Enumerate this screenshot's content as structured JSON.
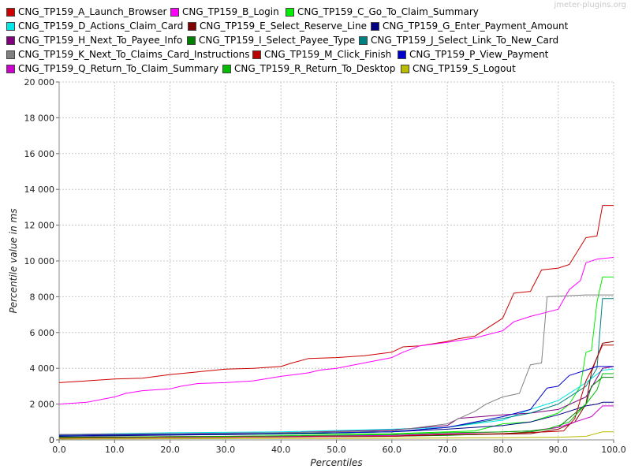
{
  "watermark": "jmeter-plugins.org",
  "chart_data": {
    "type": "line",
    "title": "",
    "xlabel": "Percentiles",
    "ylabel": "Percentile value in ms",
    "xlim": [
      0,
      100
    ],
    "ylim": [
      0,
      20000
    ],
    "x_ticks": [
      "0.0",
      "10.0",
      "20.0",
      "30.0",
      "40.0",
      "50.0",
      "60.0",
      "70.0",
      "80.0",
      "90.0",
      "100.0"
    ],
    "y_ticks": [
      "0",
      "2 000",
      "4 000",
      "6 000",
      "8 000",
      "10 000",
      "12 000",
      "14 000",
      "16 000",
      "18 000",
      "20 000"
    ],
    "grid": true,
    "legend_position": "top",
    "series": [
      {
        "name": "CNG_TP159_A_Launch_Browser",
        "color": "#cc0000",
        "points": [
          [
            0,
            3200
          ],
          [
            5,
            3300
          ],
          [
            10,
            3400
          ],
          [
            15,
            3450
          ],
          [
            20,
            3650
          ],
          [
            25,
            3800
          ],
          [
            30,
            3950
          ],
          [
            35,
            4000
          ],
          [
            40,
            4100
          ],
          [
            42,
            4300
          ],
          [
            45,
            4550
          ],
          [
            50,
            4600
          ],
          [
            55,
            4700
          ],
          [
            60,
            4900
          ],
          [
            62,
            5200
          ],
          [
            65,
            5250
          ],
          [
            70,
            5500
          ],
          [
            72,
            5650
          ],
          [
            75,
            5800
          ],
          [
            80,
            6800
          ],
          [
            82,
            8200
          ],
          [
            85,
            8300
          ],
          [
            87,
            9500
          ],
          [
            90,
            9600
          ],
          [
            92,
            9800
          ],
          [
            95,
            11300
          ],
          [
            97,
            11400
          ],
          [
            98,
            13100
          ],
          [
            100,
            13100
          ]
        ]
      },
      {
        "name": "CNG_TP159_B_Login",
        "color": "#ff00ff",
        "points": [
          [
            0,
            2000
          ],
          [
            5,
            2100
          ],
          [
            10,
            2400
          ],
          [
            12,
            2600
          ],
          [
            15,
            2750
          ],
          [
            20,
            2850
          ],
          [
            22,
            3000
          ],
          [
            25,
            3150
          ],
          [
            30,
            3200
          ],
          [
            35,
            3300
          ],
          [
            40,
            3550
          ],
          [
            45,
            3750
          ],
          [
            47,
            3900
          ],
          [
            50,
            4000
          ],
          [
            55,
            4300
          ],
          [
            60,
            4600
          ],
          [
            62,
            4900
          ],
          [
            65,
            5250
          ],
          [
            70,
            5450
          ],
          [
            72,
            5550
          ],
          [
            75,
            5700
          ],
          [
            80,
            6100
          ],
          [
            82,
            6600
          ],
          [
            85,
            6900
          ],
          [
            90,
            7300
          ],
          [
            92,
            8400
          ],
          [
            94,
            8900
          ],
          [
            95,
            9900
          ],
          [
            97,
            10100
          ],
          [
            100,
            10200
          ]
        ]
      },
      {
        "name": "CNG_TP159_C_Go_To_Claim_Summary",
        "color": "#00ee00",
        "points": [
          [
            0,
            250
          ],
          [
            20,
            280
          ],
          [
            40,
            320
          ],
          [
            60,
            350
          ],
          [
            75,
            500
          ],
          [
            80,
            900
          ],
          [
            85,
            1000
          ],
          [
            90,
            1500
          ],
          [
            92,
            2000
          ],
          [
            94,
            3000
          ],
          [
            95,
            4900
          ],
          [
            96,
            5000
          ],
          [
            97,
            7700
          ],
          [
            98,
            9100
          ],
          [
            100,
            9100
          ]
        ]
      },
      {
        "name": "CNG_TP159_D_Actions_Claim_Card",
        "color": "#00e8e8",
        "points": [
          [
            0,
            300
          ],
          [
            20,
            400
          ],
          [
            40,
            450
          ],
          [
            60,
            600
          ],
          [
            70,
            700
          ],
          [
            80,
            1100
          ],
          [
            85,
            1700
          ],
          [
            90,
            2200
          ],
          [
            95,
            3200
          ],
          [
            98,
            3900
          ],
          [
            100,
            3950
          ]
        ]
      },
      {
        "name": "CNG_TP159_E_Select_Reserve_Line",
        "color": "#800000",
        "points": [
          [
            0,
            150
          ],
          [
            30,
            200
          ],
          [
            60,
            250
          ],
          [
            75,
            300
          ],
          [
            85,
            350
          ],
          [
            90,
            600
          ],
          [
            93,
            1000
          ],
          [
            95,
            2000
          ],
          [
            96,
            3800
          ],
          [
            98,
            5400
          ],
          [
            100,
            5500
          ]
        ]
      },
      {
        "name": "CNG_TP159_G_Enter_Payment_Amount",
        "color": "#000080",
        "points": [
          [
            0,
            200
          ],
          [
            30,
            300
          ],
          [
            60,
            450
          ],
          [
            70,
            600
          ],
          [
            80,
            800
          ],
          [
            85,
            1000
          ],
          [
            90,
            1400
          ],
          [
            95,
            1900
          ],
          [
            97,
            2000
          ],
          [
            98,
            2100
          ],
          [
            100,
            2100
          ]
        ]
      },
      {
        "name": "CNG_TP159_H_Next_To_Payee_Info",
        "color": "#800080",
        "points": [
          [
            0,
            300
          ],
          [
            20,
            350
          ],
          [
            40,
            400
          ],
          [
            60,
            550
          ],
          [
            70,
            800
          ],
          [
            72,
            1200
          ],
          [
            80,
            1400
          ],
          [
            85,
            1500
          ],
          [
            90,
            1700
          ],
          [
            95,
            2400
          ],
          [
            98,
            4000
          ],
          [
            100,
            4100
          ]
        ]
      },
      {
        "name": "CNG_TP159_I_Select_Payee_Type",
        "color": "#008000",
        "points": [
          [
            0,
            100
          ],
          [
            30,
            150
          ],
          [
            60,
            200
          ],
          [
            70,
            250
          ],
          [
            80,
            350
          ],
          [
            85,
            450
          ],
          [
            90,
            700
          ],
          [
            95,
            2000
          ],
          [
            96,
            3000
          ],
          [
            98,
            3500
          ],
          [
            100,
            3500
          ]
        ]
      },
      {
        "name": "CNG_TP159_J_Select_Link_To_New_Card",
        "color": "#008080",
        "points": [
          [
            0,
            250
          ],
          [
            20,
            300
          ],
          [
            40,
            350
          ],
          [
            60,
            450
          ],
          [
            70,
            700
          ],
          [
            80,
            1200
          ],
          [
            85,
            1500
          ],
          [
            90,
            2000
          ],
          [
            95,
            3000
          ],
          [
            97,
            4000
          ],
          [
            98,
            7900
          ],
          [
            100,
            7900
          ]
        ]
      },
      {
        "name": "CNG_TP159_K_Next_To_Claims_Card_Instructions",
        "color": "#808080",
        "points": [
          [
            0,
            300
          ],
          [
            20,
            350
          ],
          [
            40,
            400
          ],
          [
            60,
            500
          ],
          [
            70,
            900
          ],
          [
            75,
            1600
          ],
          [
            77,
            2000
          ],
          [
            80,
            2400
          ],
          [
            83,
            2600
          ],
          [
            85,
            4200
          ],
          [
            87,
            4300
          ],
          [
            88,
            8000
          ],
          [
            95,
            8100
          ],
          [
            100,
            8100
          ]
        ]
      },
      {
        "name": "CNG_TP159_M_Click_Finish",
        "color": "#bb0000",
        "points": [
          [
            0,
            100
          ],
          [
            30,
            150
          ],
          [
            60,
            200
          ],
          [
            70,
            300
          ],
          [
            80,
            350
          ],
          [
            88,
            450
          ],
          [
            91,
            500
          ],
          [
            93,
            1200
          ],
          [
            95,
            3300
          ],
          [
            96,
            3900
          ],
          [
            98,
            5300
          ],
          [
            100,
            5300
          ]
        ]
      },
      {
        "name": "CNG_TP159_P_View_Payment",
        "color": "#0000cc",
        "points": [
          [
            0,
            250
          ],
          [
            20,
            300
          ],
          [
            40,
            350
          ],
          [
            60,
            450
          ],
          [
            70,
            700
          ],
          [
            80,
            1300
          ],
          [
            85,
            1700
          ],
          [
            88,
            2900
          ],
          [
            90,
            3000
          ],
          [
            92,
            3600
          ],
          [
            95,
            3900
          ],
          [
            97,
            4100
          ],
          [
            100,
            4100
          ]
        ]
      },
      {
        "name": "CNG_TP159_Q_Return_To_Claim_Summary",
        "color": "#cc00cc",
        "points": [
          [
            0,
            150
          ],
          [
            30,
            200
          ],
          [
            60,
            250
          ],
          [
            70,
            350
          ],
          [
            80,
            450
          ],
          [
            85,
            500
          ],
          [
            90,
            700
          ],
          [
            93,
            1000
          ],
          [
            96,
            1300
          ],
          [
            98,
            1900
          ],
          [
            100,
            1900
          ]
        ]
      },
      {
        "name": "CNG_TP159_R_Return_To_Desktop",
        "color": "#00bb00",
        "points": [
          [
            0,
            150
          ],
          [
            30,
            200
          ],
          [
            60,
            300
          ],
          [
            70,
            400
          ],
          [
            80,
            450
          ],
          [
            85,
            500
          ],
          [
            88,
            600
          ],
          [
            92,
            1000
          ],
          [
            95,
            2000
          ],
          [
            97,
            2800
          ],
          [
            98,
            3700
          ],
          [
            100,
            3700
          ]
        ]
      },
      {
        "name": "CNG_TP159_S_Logout",
        "color": "#bbbb00",
        "points": [
          [
            0,
            50
          ],
          [
            50,
            80
          ],
          [
            80,
            120
          ],
          [
            90,
            150
          ],
          [
            95,
            200
          ],
          [
            98,
            450
          ],
          [
            100,
            450
          ]
        ]
      }
    ]
  }
}
